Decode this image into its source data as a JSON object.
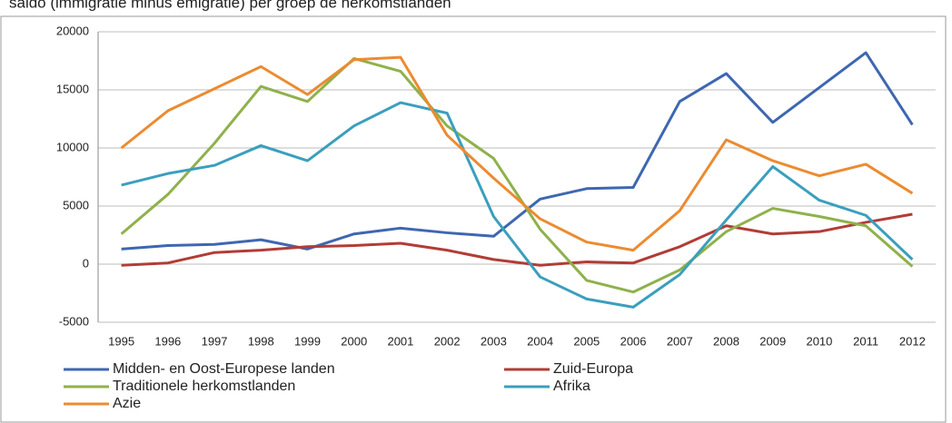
{
  "chart_data": {
    "type": "line",
    "title": "saldo (immigratie minus emigratie) per groep de herkomstlanden",
    "categories": [
      "1995",
      "1996",
      "1997",
      "1998",
      "1999",
      "2000",
      "2001",
      "2002",
      "2003",
      "2004",
      "2005",
      "2006",
      "2007",
      "2008",
      "2009",
      "2010",
      "2011",
      "2012"
    ],
    "series": [
      {
        "name": "Midden- en Oost-Europese landen",
        "color": "#3e67b1",
        "values": [
          1300,
          1600,
          1700,
          2100,
          1300,
          2600,
          3100,
          2700,
          2400,
          5600,
          6500,
          6600,
          14000,
          16400,
          12200,
          15200,
          18200,
          12000
        ]
      },
      {
        "name": "Zuid-Europa",
        "color": "#b23c36",
        "values": [
          -100,
          100,
          1000,
          1200,
          1500,
          1600,
          1800,
          1200,
          400,
          -100,
          200,
          100,
          1500,
          3300,
          2600,
          2800,
          3600,
          4300
        ]
      },
      {
        "name": "Traditionele herkomstlanden",
        "color": "#8fb14b",
        "values": [
          2600,
          6000,
          10400,
          15300,
          14000,
          17700,
          16600,
          11900,
          9100,
          3000,
          -1400,
          -2400,
          -500,
          2800,
          4800,
          4100,
          3300,
          -200
        ]
      },
      {
        "name": "Afrika",
        "color": "#3b9fbd",
        "values": [
          6800,
          7800,
          8500,
          10200,
          8900,
          11900,
          13900,
          13000,
          4100,
          -1100,
          -3000,
          -3700,
          -900,
          3800,
          8400,
          5500,
          4200,
          400
        ]
      },
      {
        "name": "Azie",
        "color": "#ec8b30",
        "values": [
          10000,
          13200,
          15100,
          17000,
          14600,
          17600,
          17800,
          11100,
          7400,
          3900,
          1900,
          1200,
          4600,
          10700,
          8900,
          7600,
          8600,
          6100
        ]
      }
    ],
    "ylim": [
      -5000,
      20000
    ],
    "yticks": [
      -5000,
      0,
      5000,
      10000,
      15000,
      20000
    ],
    "grid": true,
    "legend": "bottom"
  }
}
